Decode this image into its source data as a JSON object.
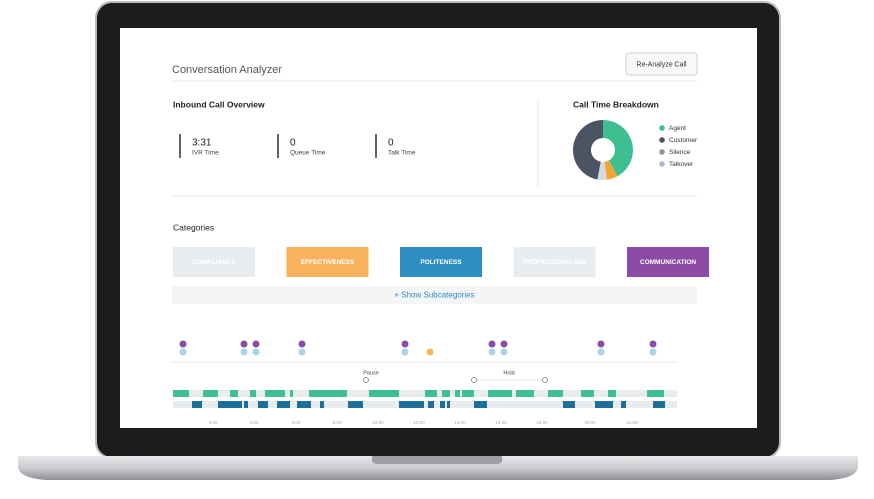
{
  "header": {
    "title": "Conversation Analyzer",
    "button": "Re-Analyze Call"
  },
  "overview": {
    "title": "Inbound Call Overview",
    "stats": [
      {
        "value": "3:31",
        "label": "IVR Time"
      },
      {
        "value": "0",
        "label": "Queue Time"
      },
      {
        "value": "0",
        "label": "Talk Time"
      }
    ]
  },
  "breakdown": {
    "title": "Call Time Breakdown",
    "chart_data": {
      "type": "pie",
      "segments": [
        {
          "value": 42,
          "color": "#3dbf8f"
        },
        {
          "value": 6,
          "color": "#f5a531"
        },
        {
          "value": 5,
          "color": "#d6dbe3"
        },
        {
          "value": 47,
          "color": "#4a5463"
        }
      ],
      "legend": [
        {
          "label": "Agent",
          "color": "#3dbf8f"
        },
        {
          "label": "Customer",
          "color": "#4a5463"
        },
        {
          "label": "Silence",
          "color": "#8a96a8"
        },
        {
          "label": "Talkover",
          "color": "#a9b8cc"
        }
      ]
    }
  },
  "categories": {
    "title": "Categories",
    "buttons": [
      {
        "label": "COMPLIANCE",
        "color": "#e9ecef"
      },
      {
        "label": "EFFECTIVENESS",
        "color": "#f9b35f"
      },
      {
        "label": "POLITENESS",
        "color": "#2d8fc0"
      },
      {
        "label": "PROFESSIONALISM",
        "color": "#e9ecef"
      },
      {
        "label": "COMMUNICATION",
        "color": "#8e4ba6"
      }
    ],
    "toggle": "+ Show Subcategories"
  },
  "timeline": {
    "markers": [
      "Pause",
      "Hold"
    ],
    "time_axis": [
      "2:00",
      "4:00",
      "6:00",
      "8:00",
      "10:00",
      "12:00",
      "14:00",
      "16:00",
      "18:00",
      "20:00",
      "22:00"
    ]
  }
}
